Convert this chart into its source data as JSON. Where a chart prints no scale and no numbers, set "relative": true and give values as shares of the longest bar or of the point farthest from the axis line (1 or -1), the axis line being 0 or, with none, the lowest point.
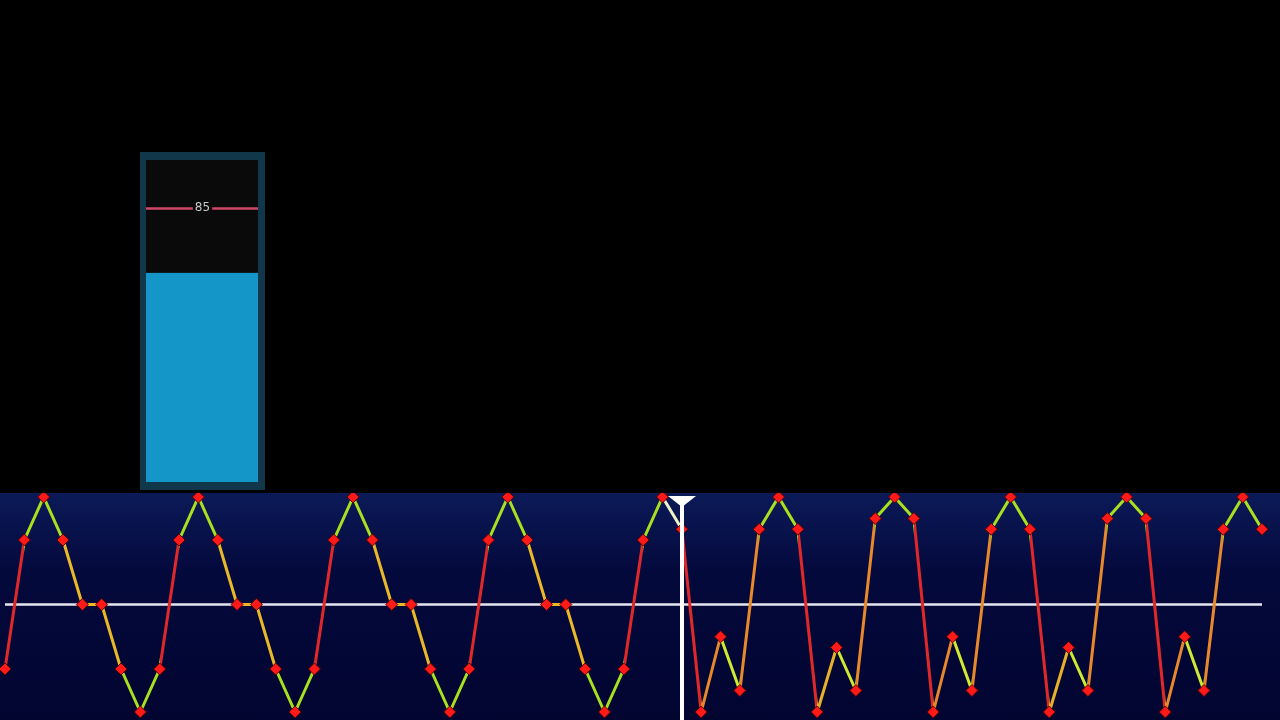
{
  "chart_data": [
    {
      "type": "bar",
      "relative": true,
      "stacked": true,
      "categories": [
        null
      ],
      "series": [
        {
          "color": "#1496c8",
          "values": [
            0.65
          ]
        },
        {
          "color": "#0a0a0a",
          "values": [
            0.35
          ]
        }
      ],
      "ref_lines": [
        {
          "axis": "y",
          "value": 0.85,
          "color": "#d04868"
        }
      ],
      "annotations": [
        {
          "text": "85",
          "y": 0.85
        }
      ]
    },
    {
      "type": "line",
      "relative": true,
      "marker": "diamond",
      "categories": [
        null,
        null,
        null,
        null,
        null,
        null,
        null,
        null,
        null,
        null,
        null,
        null,
        null,
        null,
        null,
        null,
        null,
        null,
        null,
        null,
        null,
        null,
        null,
        null,
        null,
        null,
        null,
        null,
        null,
        null,
        null,
        null,
        null,
        null,
        null,
        null,
        null,
        null,
        null,
        null,
        null,
        null,
        null,
        null,
        null,
        null,
        null,
        null,
        null,
        null,
        null,
        null,
        null,
        null,
        null,
        null,
        null,
        null,
        null,
        null,
        null,
        null,
        null,
        null,
        null,
        null
      ],
      "series": [
        {
          "color": "#ff1a1a",
          "values": [
            0.2,
            0.8,
            1,
            0.8,
            0.5,
            0.5,
            0.2,
            0,
            0.2,
            0.8,
            1,
            0.8,
            0.5,
            0.5,
            0.2,
            0,
            0.2,
            0.8,
            1,
            0.8,
            0.5,
            0.5,
            0.2,
            0,
            0.2,
            0.8,
            1,
            0.8,
            0.5,
            0.5,
            0.2,
            0,
            0.2,
            0.8,
            1,
            0.85,
            0,
            0.35,
            0.1,
            0.85,
            1,
            0.85,
            0,
            0.3,
            0.1,
            0.9,
            1,
            0.9,
            0,
            0.35,
            0.1,
            0.85,
            1,
            0.85,
            0,
            0.3,
            0.1,
            0.9,
            1,
            0.9,
            0,
            0.35,
            0.1,
            0.85,
            1,
            0.85
          ],
          "colors": [
            "#e02828",
            "#a8e020",
            "#a8e020",
            "#e8b828",
            "#e8b828",
            "#e8b828",
            "#a8e020",
            "#a8e020",
            "#e02828",
            "#a8e020",
            "#a8e020",
            "#e8b828",
            "#e8b828",
            "#e8b828",
            "#a8e020",
            "#a8e020",
            "#e02828",
            "#a8e020",
            "#a8e020",
            "#e8b828",
            "#e8b828",
            "#e8b828",
            "#a8e020",
            "#a8e020",
            "#e02828",
            "#a8e020",
            "#a8e020",
            "#e8b828",
            "#e8b828",
            "#e8b828",
            "#a8e020",
            "#a8e020",
            "#e02828",
            "#a8e020",
            "#f0f0c8",
            "#e02828",
            "#e8882a",
            "#d0e830",
            "#e8882a",
            "#a8e020",
            "#a8e020",
            "#e02828",
            "#e8b028",
            "#d0e830",
            "#e8882a",
            "#a8e020",
            "#a8e020",
            "#e02828",
            "#e8882a",
            "#d0e830",
            "#e8882a",
            "#a8e020",
            "#a8e020",
            "#e02828",
            "#e8b028",
            "#d0e830",
            "#e8882a",
            "#a8e020",
            "#a8e020",
            "#e02828",
            "#e8882a",
            "#d0e830",
            "#e8882a",
            "#a8e020",
            "#a8e020",
            "#e02828"
          ]
        }
      ],
      "ref_lines": [
        {
          "axis": "y",
          "value": 0.5,
          "color": "#e6e6f0"
        }
      ]
    }
  ]
}
